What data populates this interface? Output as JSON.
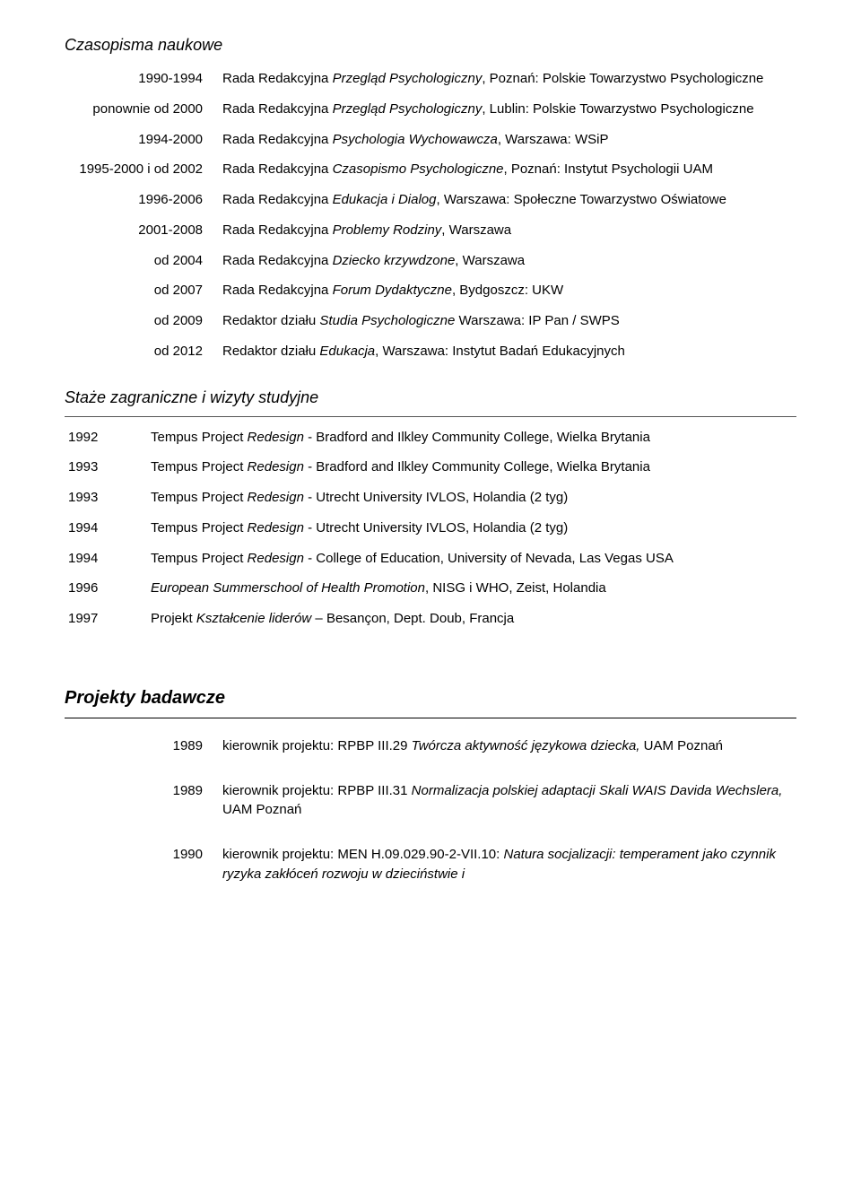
{
  "czasopisma": {
    "title": "Czasopisma naukowe",
    "rows": [
      {
        "year": "1990-1994",
        "desc_parts": [
          {
            "t": "Rada Redakcyjna ",
            "i": false
          },
          {
            "t": "Przegląd Psychologiczny",
            "i": true
          },
          {
            "t": ", Poznań: Polskie Towarzystwo Psychologiczne",
            "i": false
          }
        ]
      },
      {
        "year": "ponownie od 2000",
        "desc_parts": [
          {
            "t": "Rada Redakcyjna ",
            "i": false
          },
          {
            "t": "Przegląd Psychologiczny",
            "i": true
          },
          {
            "t": ", Lublin: Polskie Towarzystwo Psychologiczne",
            "i": false
          }
        ]
      },
      {
        "year": "1994-2000",
        "desc_parts": [
          {
            "t": "Rada Redakcyjna ",
            "i": false
          },
          {
            "t": "Psychologia Wychowawcza",
            "i": true
          },
          {
            "t": ", Warszawa: WSiP",
            "i": false
          }
        ]
      },
      {
        "year": "1995-2000 i od 2002",
        "desc_parts": [
          {
            "t": "Rada Redakcyjna ",
            "i": false
          },
          {
            "t": "Czasopismo Psychologiczne",
            "i": true
          },
          {
            "t": ", Poznań: Instytut Psychologii UAM",
            "i": false
          }
        ]
      },
      {
        "year": "1996-2006",
        "desc_parts": [
          {
            "t": "Rada Redakcyjna ",
            "i": false
          },
          {
            "t": "Edukacja i Dialog",
            "i": true
          },
          {
            "t": ", Warszawa: Społeczne Towarzystwo Oświatowe",
            "i": false
          }
        ]
      },
      {
        "year": "2001-2008",
        "desc_parts": [
          {
            "t": "Rada Redakcyjna ",
            "i": false
          },
          {
            "t": "Problemy Rodziny",
            "i": true
          },
          {
            "t": ", Warszawa",
            "i": false
          }
        ]
      },
      {
        "year": "od 2004",
        "desc_parts": [
          {
            "t": "Rada Redakcyjna ",
            "i": false
          },
          {
            "t": "Dziecko krzywdzone",
            "i": true
          },
          {
            "t": ", Warszawa",
            "i": false
          }
        ]
      },
      {
        "year": "od 2007",
        "desc_parts": [
          {
            "t": "Rada Redakcyjna ",
            "i": false
          },
          {
            "t": "Forum Dydaktyczne",
            "i": true
          },
          {
            "t": ", Bydgoszcz: UKW",
            "i": false
          }
        ]
      },
      {
        "year": "od 2009",
        "desc_parts": [
          {
            "t": "Redaktor działu ",
            "i": false
          },
          {
            "t": "Studia Psychologiczne",
            "i": true
          },
          {
            "t": " Warszawa: IP Pan / SWPS",
            "i": false
          }
        ]
      },
      {
        "year": "od 2012",
        "desc_parts": [
          {
            "t": "Redaktor działu ",
            "i": false
          },
          {
            "t": "Edukacja",
            "i": true
          },
          {
            "t": ", Warszawa: Instytut Badań Edukacyjnych",
            "i": false
          }
        ]
      }
    ]
  },
  "staze": {
    "title": "Staże zagraniczne i wizyty studyjne",
    "rows": [
      {
        "year": "1992",
        "desc_parts": [
          {
            "t": "Tempus Project ",
            "i": false
          },
          {
            "t": "Redesign",
            "i": true
          },
          {
            "t": " - Bradford and Ilkley Community College, Wielka Brytania",
            "i": false
          }
        ]
      },
      {
        "year": "1993",
        "desc_parts": [
          {
            "t": "Tempus Project ",
            "i": false
          },
          {
            "t": "Redesign",
            "i": true
          },
          {
            "t": " - Bradford and Ilkley Community College, Wielka Brytania",
            "i": false
          }
        ]
      },
      {
        "year": "1993",
        "desc_parts": [
          {
            "t": "Tempus Project ",
            "i": false
          },
          {
            "t": "Redesign",
            "i": true
          },
          {
            "t": " - Utrecht University IVLOS, Holandia (2 tyg)",
            "i": false
          }
        ]
      },
      {
        "year": "1994",
        "desc_parts": [
          {
            "t": "Tempus Project ",
            "i": false
          },
          {
            "t": "Redesign",
            "i": true
          },
          {
            "t": " - Utrecht University IVLOS, Holandia (2 tyg)",
            "i": false
          }
        ]
      },
      {
        "year": "1994",
        "desc_parts": [
          {
            "t": "Tempus Project ",
            "i": false
          },
          {
            "t": "Redesign",
            "i": true
          },
          {
            "t": " - College of Education, University of Nevada, Las Vegas USA",
            "i": false
          }
        ]
      },
      {
        "year": "1996",
        "desc_parts": [
          {
            "t": "European Summerschool of Health Promotion",
            "i": true
          },
          {
            "t": ", NISG i WHO, Zeist, Holandia",
            "i": false
          }
        ]
      },
      {
        "year": "1997",
        "desc_parts": [
          {
            "t": "Projekt ",
            "i": false
          },
          {
            "t": "Kształcenie liderów",
            "i": true
          },
          {
            "t": " – Besançon, Dept. Doub, Francja",
            "i": false
          }
        ]
      }
    ]
  },
  "projekty": {
    "title": "Projekty badawcze",
    "rows": [
      {
        "year": "1989",
        "desc_parts": [
          {
            "t": "kierownik projektu:   RPBP III.29 ",
            "i": false
          },
          {
            "t": "Twórcza aktywność językowa dziecka,",
            "i": true
          },
          {
            "t": " UAM Poznań",
            "i": false
          }
        ]
      },
      {
        "year": "1989",
        "desc_parts": [
          {
            "t": "kierownik projektu:   RPBP III.31 ",
            "i": false
          },
          {
            "t": "Normalizacja polskiej adaptacji Skali WAIS Davida Wechslera,",
            "i": true
          },
          {
            "t": " UAM Poznań",
            "i": false
          }
        ]
      },
      {
        "year": "1990",
        "desc_parts": [
          {
            "t": "kierownik projektu:   MEN H.09.029.90-2-VII.10: ",
            "i": false
          },
          {
            "t": "Natura socjalizacji: temperament jako czynnik ryzyka zakłóceń rozwoju w dzieciństwie i",
            "i": true
          }
        ]
      }
    ]
  }
}
